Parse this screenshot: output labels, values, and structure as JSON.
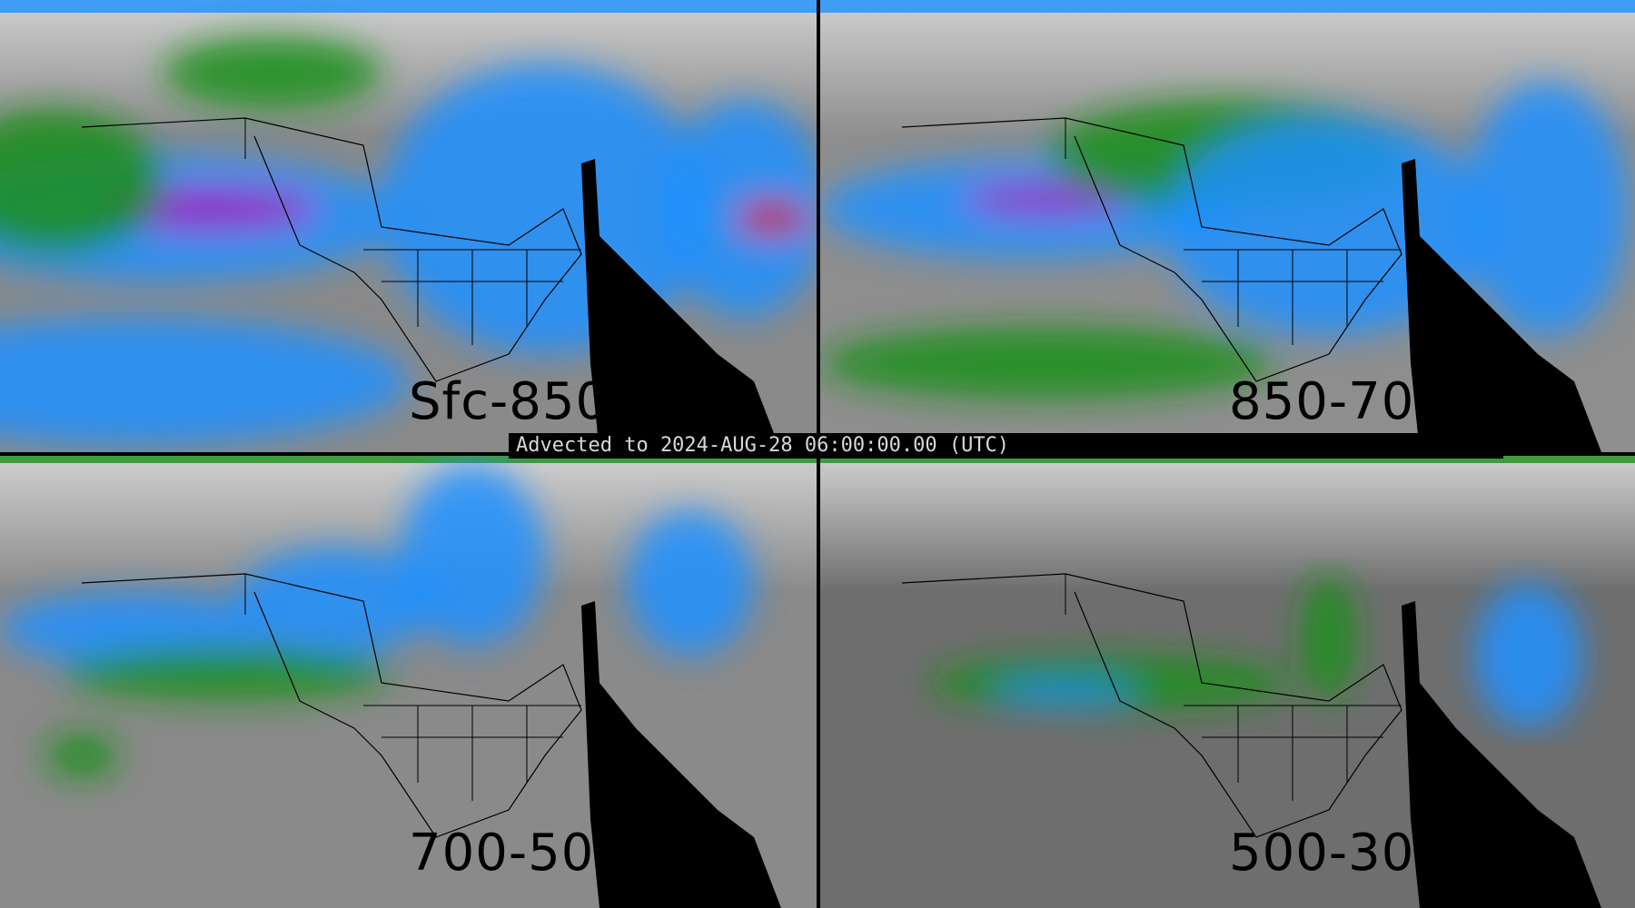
{
  "title": "Advected to 2024-AUG-28 06:00:00.00 (UTC)",
  "panels": [
    {
      "label": "Sfc-850",
      "position": "top-left"
    },
    {
      "label": "850-700",
      "position": "top-right"
    },
    {
      "label": "700-500",
      "position": "bottom-left"
    },
    {
      "label": "500-300",
      "position": "bottom-right"
    }
  ],
  "colors": {
    "background": "#000000",
    "low": "#808080",
    "mid": "#1a8f1a",
    "high": "#1e90ff",
    "higher": "#00d0ff",
    "peak": "#a020c0",
    "extreme": "#d01030"
  }
}
